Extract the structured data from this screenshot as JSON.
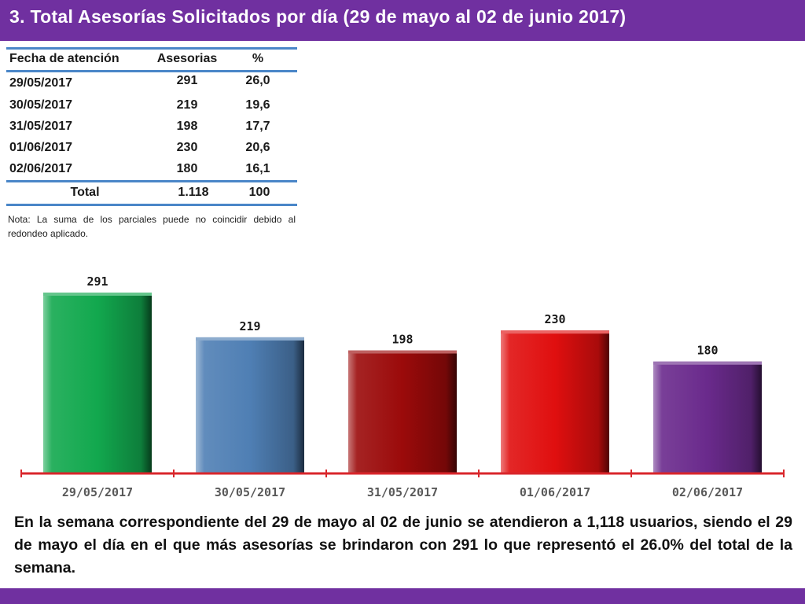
{
  "title": "3. Total Asesorías Solicitados por día (29 de mayo al 02 de junio 2017)",
  "table": {
    "headers": [
      "Fecha de atención",
      "Asesorias",
      "%"
    ],
    "rows": [
      {
        "fecha": "29/05/2017",
        "asesorias": "291",
        "pct": "26,0"
      },
      {
        "fecha": "30/05/2017",
        "asesorias": "219",
        "pct": "19,6"
      },
      {
        "fecha": "31/05/2017",
        "asesorias": "198",
        "pct": "17,7"
      },
      {
        "fecha": "01/06/2017",
        "asesorias": "230",
        "pct": "20,6"
      },
      {
        "fecha": "02/06/2017",
        "asesorias": "180",
        "pct": "16,1"
      }
    ],
    "total": {
      "label": "Total",
      "asesorias": "1.118",
      "pct": "100"
    },
    "accent_color": "#4a86c8"
  },
  "note": "Nota: La suma de los parciales puede no coincidir debido al redondeo aplicado.",
  "chart_data": {
    "type": "bar",
    "categories": [
      "29/05/2017",
      "30/05/2017",
      "31/05/2017",
      "01/06/2017",
      "02/06/2017"
    ],
    "values": [
      291,
      219,
      198,
      230,
      180
    ],
    "colors": [
      "#12a84e",
      "#4f7fb4",
      "#9b0a0a",
      "#e00f0f",
      "#6a2a8c"
    ],
    "axis_color": "#d9262b",
    "ylim": [
      0,
      291
    ],
    "grid": false,
    "title": "",
    "xlabel": "",
    "ylabel": ""
  },
  "summary": "En la semana correspondiente del 29 de mayo al 02 de junio se atendieron a 1,118 usuarios, siendo el 29 de mayo el día en el que más asesorías se brindaron con 291 lo que representó el 26.0% del total de la semana.",
  "theme": {
    "header_color": "#7030a0"
  }
}
